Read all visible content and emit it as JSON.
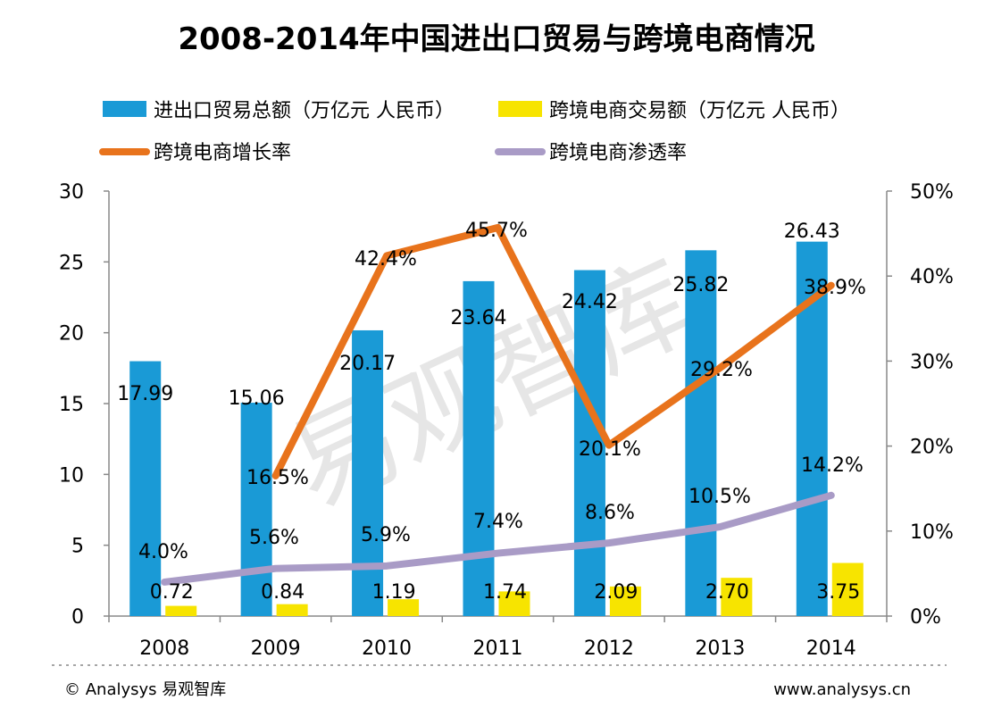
{
  "chart_data": {
    "type": "bar",
    "title": "2008-2014年中国进出口贸易与跨境电商情况",
    "categories": [
      "2008",
      "2009",
      "2010",
      "2011",
      "2012",
      "2013",
      "2014"
    ],
    "ylim_left": [
      0,
      30
    ],
    "yticks_left": [
      "0",
      "5",
      "10",
      "15",
      "20",
      "25",
      "30"
    ],
    "ylim_right": [
      0,
      50
    ],
    "yticks_right": [
      "0%",
      "10%",
      "20%",
      "30%",
      "40%",
      "50%"
    ],
    "series": [
      {
        "name": "进出口贸易总额（万亿元 人民币）",
        "kind": "bar",
        "axis": "left",
        "color": "#1a9ad6",
        "values": [
          17.99,
          15.06,
          20.17,
          23.64,
          24.42,
          25.82,
          26.43
        ],
        "labels": [
          "17.99",
          "15.06",
          "20.17",
          "23.64",
          "24.42",
          "25.82",
          "26.43"
        ]
      },
      {
        "name": "跨境电商交易额（万亿元 人民币）",
        "kind": "bar",
        "axis": "left",
        "color": "#f7e400",
        "values": [
          0.72,
          0.84,
          1.19,
          1.74,
          2.09,
          2.7,
          3.75
        ],
        "labels": [
          "0.72",
          "0.84",
          "1.19",
          "1.74",
          "2.09",
          "2.70",
          "3.75"
        ]
      },
      {
        "name": "跨境电商增长率",
        "kind": "line",
        "axis": "right",
        "color": "#e8731c",
        "values": [
          null,
          16.5,
          42.4,
          45.7,
          20.1,
          29.2,
          38.9
        ],
        "labels": [
          "",
          "16.5%",
          "42.4%",
          "45.7%",
          "20.1%",
          "29.2%",
          "38.9%"
        ]
      },
      {
        "name": "跨境电商渗透率",
        "kind": "line",
        "axis": "right",
        "color": "#a99bc6",
        "values": [
          4.0,
          5.6,
          5.9,
          7.4,
          8.6,
          10.5,
          14.2
        ],
        "labels": [
          "4.0%",
          "5.6%",
          "5.9%",
          "7.4%",
          "8.6%",
          "10.5%",
          "14.2%"
        ]
      }
    ],
    "watermark": "易观智库"
  },
  "footer": {
    "left": "© Analysys 易观智库",
    "right": "www.analysys.cn"
  }
}
